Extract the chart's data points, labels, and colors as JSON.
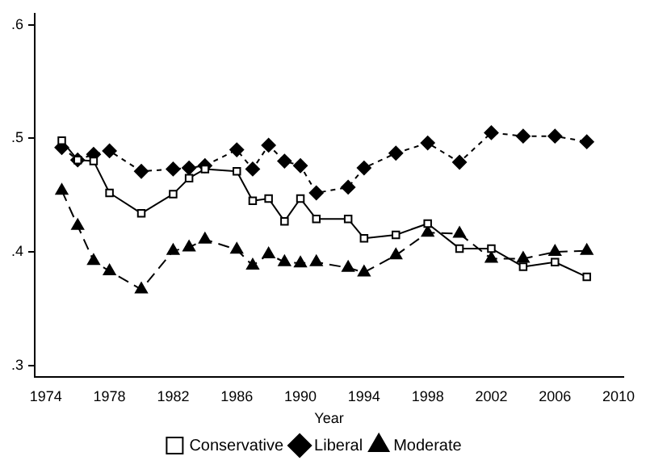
{
  "chart_data": {
    "type": "line",
    "xlabel": "Year",
    "x": [
      1975,
      1976,
      1977,
      1978,
      1980,
      1982,
      1983,
      1984,
      1986,
      1987,
      1988,
      1989,
      1990,
      1991,
      1993,
      1994,
      1996,
      1998,
      2000,
      2002,
      2004,
      2006,
      2008
    ],
    "series": [
      {
        "name": "Conservative",
        "color": "#000000",
        "marker": "square",
        "line_style": "solid",
        "values": [
          0.498,
          0.481,
          0.48,
          0.452,
          0.434,
          0.451,
          0.465,
          0.473,
          0.471,
          0.445,
          0.447,
          0.427,
          0.447,
          0.429,
          0.429,
          0.412,
          0.415,
          0.425,
          0.403,
          0.403,
          0.387,
          0.391,
          0.378
        ]
      },
      {
        "name": "Liberal",
        "color": "#000000",
        "marker": "diamond",
        "line_style": "dotted",
        "values": [
          0.492,
          0.481,
          0.486,
          0.489,
          0.471,
          0.473,
          0.474,
          0.476,
          0.49,
          0.473,
          0.494,
          0.48,
          0.476,
          0.452,
          0.457,
          0.474,
          0.487,
          0.496,
          0.479,
          0.505,
          0.502,
          0.502,
          0.497
        ]
      },
      {
        "name": "Moderate",
        "color": "#000000",
        "marker": "triangle",
        "line_style": "dashed",
        "values": [
          0.454,
          0.423,
          0.392,
          0.383,
          0.367,
          0.401,
          0.404,
          0.411,
          0.402,
          0.388,
          0.398,
          0.391,
          0.39,
          0.391,
          0.386,
          0.382,
          0.397,
          0.417,
          0.416,
          0.394,
          0.394,
          0.4,
          0.401
        ]
      }
    ],
    "xlim": [
      1973.3,
      2010.3
    ],
    "xticks": [
      1974,
      1978,
      1982,
      1986,
      1990,
      1994,
      1998,
      2002,
      2006,
      2010
    ],
    "ylim": [
      0.29,
      0.61
    ],
    "yticks": [
      {
        "value": 0.3,
        "label": ".3"
      },
      {
        "value": 0.4,
        "label": ".4"
      },
      {
        "value": 0.5,
        "label": ".5"
      },
      {
        "value": 0.6,
        "label": ".6"
      }
    ],
    "grid": false,
    "legend": "bottom"
  }
}
